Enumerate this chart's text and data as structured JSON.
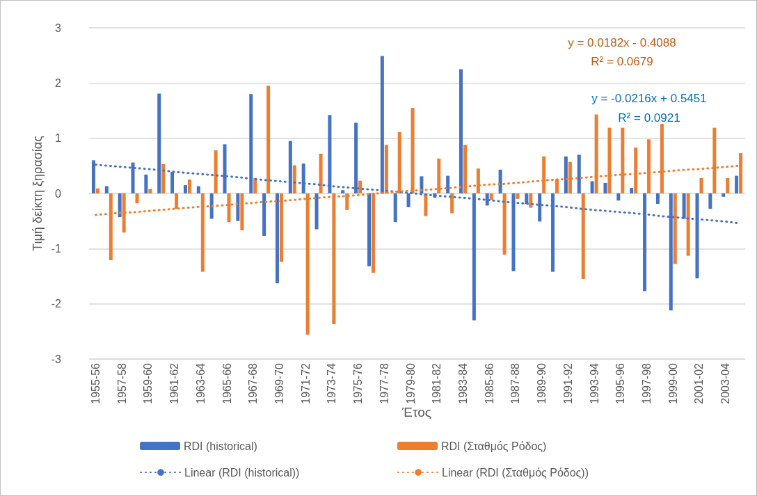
{
  "chart_data": {
    "type": "bar",
    "xlabel": "Έτος",
    "ylabel": "Τιμή δείκτη ξηρασίας",
    "categories": [
      "1955-56",
      null,
      "1957-58",
      null,
      "1959-60",
      null,
      "1961-62",
      null,
      "1963-64",
      null,
      "1965-66",
      null,
      "1967-68",
      null,
      "1969-70",
      null,
      "1971-72",
      null,
      "1973-74",
      null,
      "1975-76",
      null,
      "1977-78",
      null,
      "1979-80",
      null,
      "1981-82",
      null,
      "1983-84",
      null,
      "1985-86",
      null,
      "1987-88",
      null,
      "1989-90",
      null,
      "1991-92",
      null,
      "1993-94",
      null,
      "1995-96",
      null,
      "1997-98",
      null,
      "1999-00",
      null,
      "2001-02",
      null,
      "2003-04",
      null
    ],
    "series": [
      {
        "name": "RDI (historical)",
        "color": "#4472c4",
        "values": [
          0.6,
          0.13,
          -0.43,
          0.56,
          0.34,
          1.81,
          0.39,
          0.15,
          0.13,
          -0.46,
          0.89,
          -0.5,
          1.8,
          -0.77,
          -1.63,
          0.95,
          0.54,
          -0.65,
          1.42,
          0.06,
          1.28,
          -1.32,
          2.49,
          -0.52,
          -0.25,
          0.31,
          -0.08,
          0.32,
          2.25,
          -2.3,
          -0.22,
          0.43,
          -1.41,
          -0.19,
          -0.51,
          -1.42,
          0.67,
          0.7,
          0.22,
          0.19,
          -0.13,
          0.1,
          -1.77,
          -0.19,
          -2.12,
          -0.46,
          -1.54,
          -0.28,
          -0.06,
          0.32
        ]
      },
      {
        "name": "RDI (Σταθμός Ρόδος)",
        "color": "#ed7d31",
        "values": [
          0.09,
          -1.21,
          -0.71,
          -0.18,
          0.08,
          0.53,
          -0.28,
          0.25,
          -1.42,
          0.78,
          -0.52,
          -0.67,
          0.28,
          1.95,
          -1.24,
          0.51,
          -2.56,
          0.72,
          -2.37,
          -0.3,
          0.23,
          -1.44,
          0.88,
          1.11,
          1.55,
          -0.41,
          0.63,
          -0.36,
          0.88,
          0.45,
          -0.12,
          -1.11,
          -0.1,
          -0.26,
          0.67,
          0.26,
          0.57,
          -1.55,
          1.43,
          1.19,
          1.19,
          0.83,
          0.98,
          1.26,
          -1.28,
          -1.13,
          0.28,
          1.19,
          0.28,
          0.73
        ]
      },
      {
        "name": "Linear (RDI (historical))",
        "type": "line",
        "line_style": "dotted",
        "color": "#4472c4",
        "values": [
          0.52,
          0.5,
          0.48,
          0.46,
          0.44,
          0.42,
          0.39,
          0.37,
          0.35,
          0.33,
          0.31,
          0.29,
          0.26,
          0.24,
          0.22,
          0.2,
          0.18,
          0.16,
          0.13,
          0.11,
          0.09,
          0.07,
          0.05,
          0.03,
          0.01,
          -0.02,
          -0.04,
          -0.06,
          -0.08,
          -0.1,
          -0.12,
          -0.15,
          -0.17,
          -0.19,
          -0.21,
          -0.23,
          -0.25,
          -0.28,
          -0.3,
          -0.32,
          -0.34,
          -0.36,
          -0.38,
          -0.41,
          -0.43,
          -0.45,
          -0.47,
          -0.49,
          -0.51,
          -0.54
        ]
      },
      {
        "name": "Linear (RDI (Σταθμός Ρόδος))",
        "type": "line",
        "line_style": "dotted",
        "color": "#ed7d31",
        "values": [
          -0.39,
          -0.37,
          -0.35,
          -0.34,
          -0.32,
          -0.3,
          -0.28,
          -0.26,
          -0.24,
          -0.23,
          -0.21,
          -0.19,
          -0.17,
          -0.15,
          -0.14,
          -0.12,
          -0.1,
          -0.08,
          -0.06,
          -0.05,
          -0.03,
          -0.01,
          0.01,
          0.03,
          0.05,
          0.06,
          0.08,
          0.1,
          0.12,
          0.14,
          0.16,
          0.17,
          0.19,
          0.21,
          0.23,
          0.25,
          0.26,
          0.28,
          0.3,
          0.32,
          0.34,
          0.35,
          0.37,
          0.39,
          0.41,
          0.43,
          0.44,
          0.46,
          0.48,
          0.5
        ]
      }
    ],
    "ylim": [
      -3,
      3
    ],
    "yticks": [
      -3,
      -2,
      -1,
      0,
      1,
      2,
      3
    ],
    "grid": "y",
    "legend": "bottom",
    "marker": "none",
    "annotations": [
      "y = 0.0182x - 0.4088",
      "R² = 0.0679",
      "y = -0.0216x + 0.5451",
      "R² = 0.0921"
    ]
  }
}
